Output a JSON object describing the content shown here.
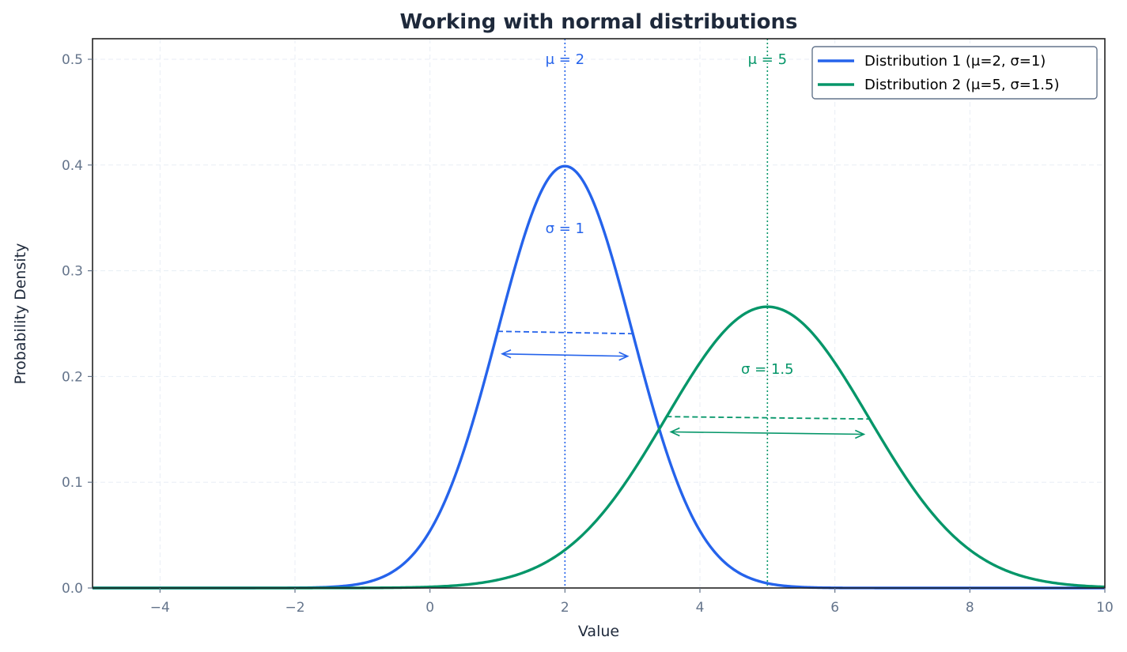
{
  "chart_data": {
    "type": "line",
    "title": "Working with normal distributions",
    "xlabel": "Value",
    "ylabel": "Probability Density",
    "xlim": [
      -5,
      10
    ],
    "ylim": [
      0,
      0.52
    ],
    "xticks": [
      -4,
      -2,
      0,
      2,
      4,
      6,
      8,
      10
    ],
    "xtick_labels": [
      "−4",
      "−2",
      "0",
      "2",
      "4",
      "6",
      "8",
      "10"
    ],
    "yticks": [
      0.0,
      0.1,
      0.2,
      0.3,
      0.4,
      0.5
    ],
    "ytick_labels": [
      "0.0",
      "0.1",
      "0.2",
      "0.3",
      "0.4",
      "0.5"
    ],
    "grid": true,
    "legend_position": "upper right",
    "series": [
      {
        "name": "Distribution 1 (μ=2, σ=1)",
        "mu": 2,
        "sigma": 1,
        "color": "#2563eb",
        "peak": 0.399
      },
      {
        "name": "Distribution 2 (μ=5, σ=1.5)",
        "mu": 5,
        "sigma": 1.5,
        "color": "#059669",
        "peak": 0.266
      }
    ],
    "annotations": [
      {
        "text": "μ = 2",
        "x": 2,
        "y": 0.5,
        "color": "#2563eb"
      },
      {
        "text": "μ = 5",
        "x": 5,
        "y": 0.5,
        "color": "#059669"
      },
      {
        "text": "σ = 1",
        "x": 2,
        "y": 0.34,
        "color": "#2563eb"
      },
      {
        "text": "σ = 1.5",
        "x": 5,
        "y": 0.207,
        "color": "#059669"
      }
    ]
  },
  "legend": {
    "items": [
      {
        "label": "Distribution 1 (μ=2, σ=1)",
        "color": "#2563eb"
      },
      {
        "label": "Distribution 2 (μ=5, σ=1.5)",
        "color": "#059669"
      }
    ]
  }
}
